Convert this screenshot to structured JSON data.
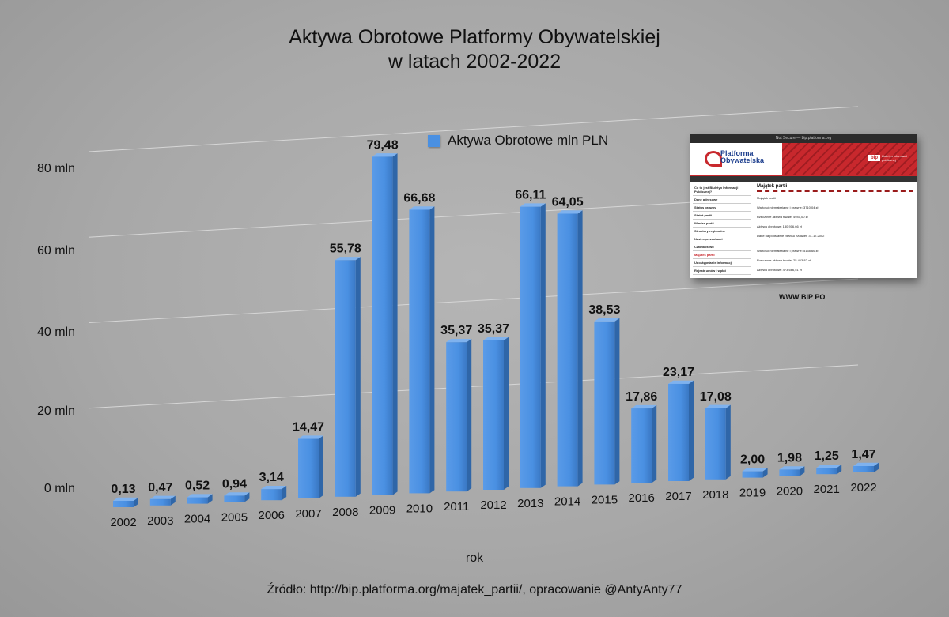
{
  "title": {
    "line1": "Aktywa Obrotowe Platformy Obywatelskiej",
    "line2": "w latach 2002-2022"
  },
  "legend": {
    "label": "Aktywa Obrotowe  mln PLN",
    "color": "#4a90e2"
  },
  "xlabel": "rok",
  "source": "Źródło: http://bip.platforma.org/majatek_partii/, opracowanie @AntyAnty77",
  "chart_data": {
    "type": "bar",
    "categories": [
      "2002",
      "2003",
      "2004",
      "2005",
      "2006",
      "2007",
      "2008",
      "2009",
      "2010",
      "2011",
      "2012",
      "2013",
      "2014",
      "2015",
      "2016",
      "2017",
      "2018",
      "2019",
      "2020",
      "2021",
      "2022"
    ],
    "series": [
      {
        "name": "Aktywa Obrotowe  mln PLN",
        "values": [
          0.13,
          0.47,
          0.52,
          0.94,
          3.14,
          14.47,
          55.78,
          79.48,
          66.68,
          35.37,
          35.37,
          66.11,
          64.05,
          38.53,
          17.86,
          23.17,
          17.08,
          2.0,
          1.98,
          1.25,
          1.47
        ],
        "labels": [
          "0,13",
          "0,47",
          "0,52",
          "0,94",
          "3,14",
          "14,47",
          "55,78",
          "79,48",
          "66,68",
          "35,37",
          "35,37",
          "66,11",
          "64,05",
          "38,53",
          "17,86",
          "23,17",
          "17,08",
          "2,00",
          "1,98",
          "1,25",
          "1,47"
        ],
        "color": "#4a90e2"
      }
    ],
    "yticks": [
      "0 mln",
      "20 mln",
      "40 mln",
      "60 mln",
      "80 mln"
    ],
    "ylim": [
      0,
      80
    ],
    "xlabel": "rok",
    "grid": true,
    "legend_position": "top-center"
  },
  "inset": {
    "url_bar": "Not Secure — bip.platforma.org",
    "logo_line1": "Platforma",
    "logo_line2": "Obywatelska",
    "bip_badge": "bip",
    "bip_subtitle": "biuletyn informacji publicznej",
    "sidebar": [
      "Co to jest Biuletyn Informacji Publicznej?",
      "Dane adresowe",
      "Status prawny",
      "Statut partii",
      "Władze partii",
      "Struktury regionalne",
      "Nasi reprezentanci",
      "Członkostwo",
      "Majątek partii",
      "Udostępnianie informacji",
      "Rejestr umów i wpłat"
    ],
    "heading": "Majątek partii",
    "lines": [
      "Majątek partii",
      "Wartości niematerialne i prawne: 3710,04 zł",
      "Rzeczowe aktywa trwałe: 4940,00 zł",
      "Aktywa obrotowe: 130.916,66 zł",
      "Dane na podstawie bilansu na dzień 31.12.2002",
      "Wartości niematerialne i prawne: 5158,66 zł",
      "Rzeczowe aktywa trwałe: 25.463,82 zł",
      "Aktywa obrotowe: 473.666,51 zł",
      "Dane na podstawie bilansu na dzień 31.12.2003"
    ],
    "caption": "WWW BIP PO"
  }
}
